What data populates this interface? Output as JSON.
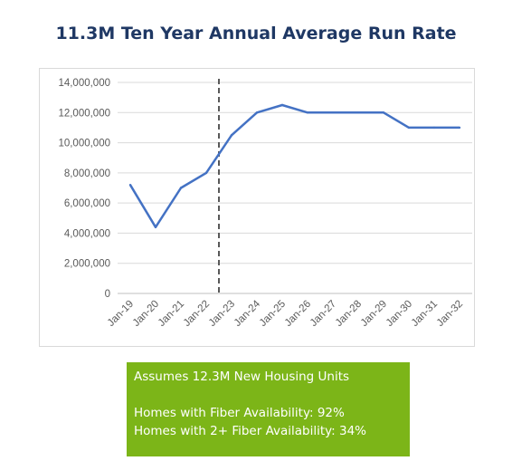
{
  "chart_data": {
    "type": "line",
    "title": "11.3M Ten Year Annual Average Run Rate",
    "categories": [
      "Jan-19",
      "Jan-20",
      "Jan-21",
      "Jan-22",
      "Jan-23",
      "Jan-24",
      "Jan-25",
      "Jan-26",
      "Jan-27",
      "Jan-28",
      "Jan-29",
      "Jan-30",
      "Jan-31",
      "Jan-32"
    ],
    "series": [
      {
        "values": [
          7200000,
          4400000,
          7000000,
          8000000,
          10500000,
          12000000,
          12500000,
          12000000,
          12000000,
          12000000,
          12000000,
          11000000,
          11000000,
          11000000
        ]
      }
    ],
    "ylim": [
      0,
      14000000
    ],
    "yticks": [
      "0",
      "2,000,000",
      "4,000,000",
      "6,000,000",
      "8,000,000",
      "10,000,000",
      "12,000,000",
      "14,000,000"
    ],
    "grid": true,
    "annotation": {
      "type": "vertical-dashed-line",
      "between": [
        "Jan-22",
        "Jan-23"
      ]
    },
    "line_color": "#4472c4"
  },
  "note": {
    "line1": "Assumes 12.3M New Housing Units",
    "line2": "Homes with Fiber Availability: 92%",
    "line3": "Homes with 2+ Fiber Availability: 34%",
    "background": "#7cb518"
  }
}
